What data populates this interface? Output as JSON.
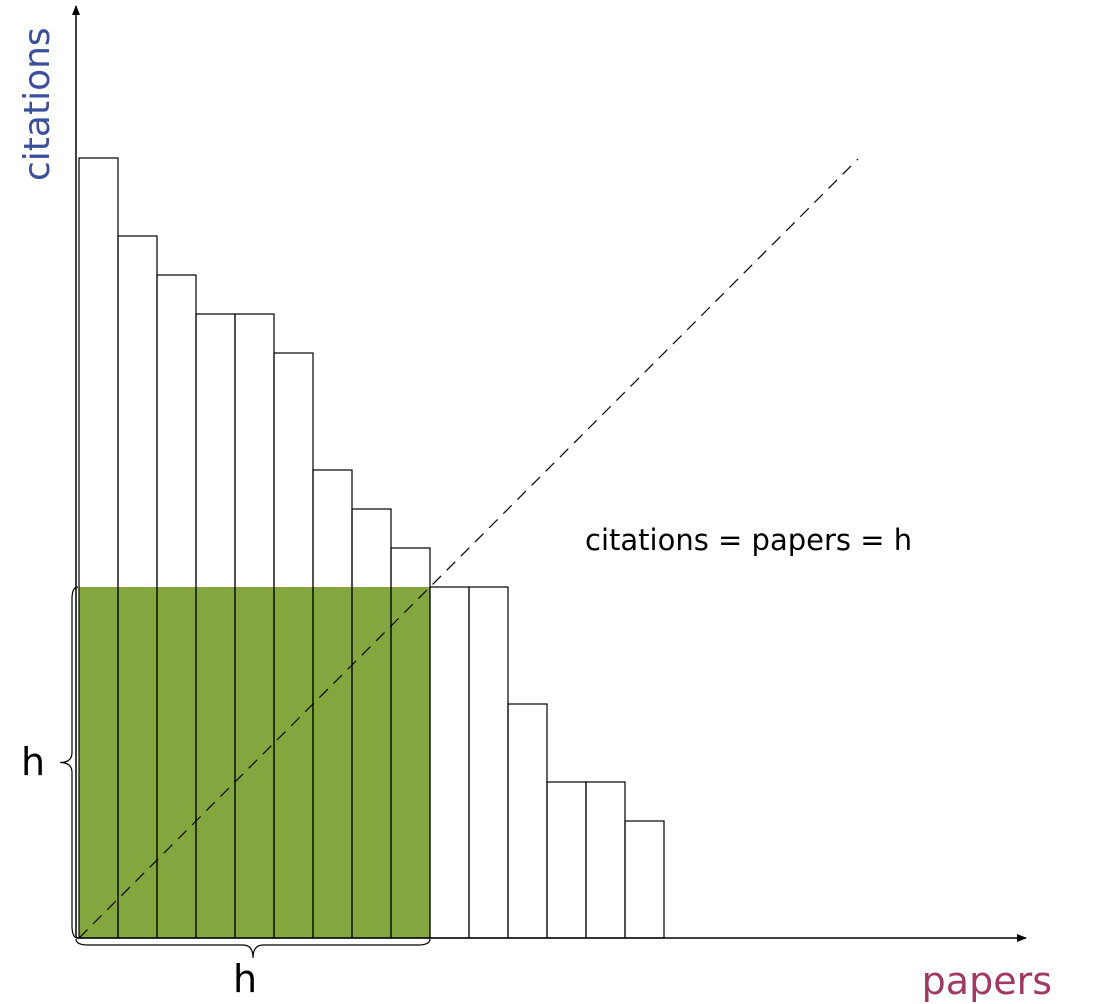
{
  "labels": {
    "y_axis": "citations",
    "x_axis": "papers",
    "equation": "citations = papers = h",
    "h_vertical": "h",
    "h_horizontal": "h"
  },
  "colors": {
    "highlight": "#83a63f",
    "y_axis_label": "#3c4f9a",
    "x_axis_label": "#a03a62",
    "stroke": "#000000"
  },
  "chart_data": {
    "type": "bar",
    "values": [
      20,
      18,
      17,
      16,
      16,
      15,
      12,
      11,
      10,
      9,
      9,
      6,
      4,
      4,
      3
    ],
    "h": 9,
    "highlighted_count": 9,
    "diagonal": "citations = papers",
    "ylim": [
      0,
      20
    ]
  }
}
